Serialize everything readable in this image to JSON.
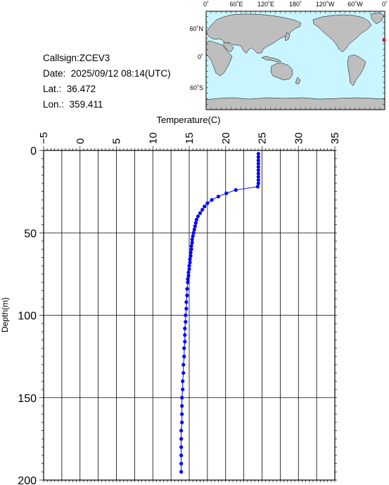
{
  "info": {
    "callsign": "Callsign:ZCEV3",
    "date": "Date:  2025/09/12 08:14(UTC)",
    "lat_label": "Lat.:",
    "lat_value": "36.472",
    "lon_label": "Lon.:",
    "lon_value": "359.411"
  },
  "map": {
    "lon_labels": [
      "0˚",
      "60˚E",
      "120˚E",
      "180˚",
      "120˚W",
      "60˚W",
      "0˚"
    ],
    "lat_labels": [
      "60˚N",
      "0˚",
      "60˚S"
    ],
    "colors": {
      "ocean": "#c8f5ff",
      "land": "#bebebe",
      "marker": "#ff0000"
    }
  },
  "chart_data": {
    "type": "line",
    "xlabel": "Temperature(C)",
    "ylabel": "Depth(m)",
    "xlim": [
      -5,
      35
    ],
    "ylim": [
      200,
      0
    ],
    "x_tick_labels": [
      "−5",
      "0",
      "5",
      "10",
      "15",
      "20",
      "25",
      "30",
      "35"
    ],
    "y_tick_labels": [
      "0",
      "50",
      "100",
      "150",
      "200"
    ],
    "grid": true,
    "series_color": "#0000ff",
    "points": [
      [
        24.5,
        2
      ],
      [
        24.5,
        4
      ],
      [
        24.5,
        6
      ],
      [
        24.5,
        8
      ],
      [
        24.5,
        10
      ],
      [
        24.5,
        12
      ],
      [
        24.5,
        14
      ],
      [
        24.5,
        16
      ],
      [
        24.5,
        18
      ],
      [
        24.5,
        20
      ],
      [
        24.4,
        22
      ],
      [
        21.4,
        24
      ],
      [
        20.1,
        26
      ],
      [
        19.0,
        28
      ],
      [
        18.1,
        30
      ],
      [
        17.5,
        32
      ],
      [
        17.1,
        34
      ],
      [
        16.8,
        36
      ],
      [
        16.5,
        38
      ],
      [
        16.2,
        40
      ],
      [
        16.0,
        42
      ],
      [
        15.9,
        44
      ],
      [
        15.8,
        46
      ],
      [
        15.7,
        48
      ],
      [
        15.6,
        50
      ],
      [
        15.5,
        52
      ],
      [
        15.4,
        54
      ],
      [
        15.4,
        56
      ],
      [
        15.3,
        58
      ],
      [
        15.3,
        60
      ],
      [
        15.2,
        62
      ],
      [
        15.2,
        64
      ],
      [
        15.1,
        66
      ],
      [
        15.1,
        68
      ],
      [
        15.0,
        70
      ],
      [
        15.0,
        72
      ],
      [
        14.9,
        74
      ],
      [
        14.9,
        76
      ],
      [
        14.8,
        78
      ],
      [
        14.8,
        80
      ],
      [
        14.7,
        84
      ],
      [
        14.7,
        88
      ],
      [
        14.6,
        92
      ],
      [
        14.6,
        96
      ],
      [
        14.5,
        100
      ],
      [
        14.5,
        104
      ],
      [
        14.4,
        108
      ],
      [
        14.4,
        112
      ],
      [
        14.4,
        116
      ],
      [
        14.3,
        120
      ],
      [
        14.3,
        125
      ],
      [
        14.2,
        130
      ],
      [
        14.2,
        135
      ],
      [
        14.1,
        140
      ],
      [
        14.1,
        145
      ],
      [
        14.0,
        150
      ],
      [
        14.0,
        155
      ],
      [
        14.0,
        160
      ],
      [
        14.0,
        165
      ],
      [
        13.9,
        170
      ],
      [
        13.9,
        175
      ],
      [
        13.9,
        180
      ],
      [
        13.9,
        185
      ],
      [
        13.9,
        190
      ],
      [
        13.9,
        195
      ]
    ]
  }
}
